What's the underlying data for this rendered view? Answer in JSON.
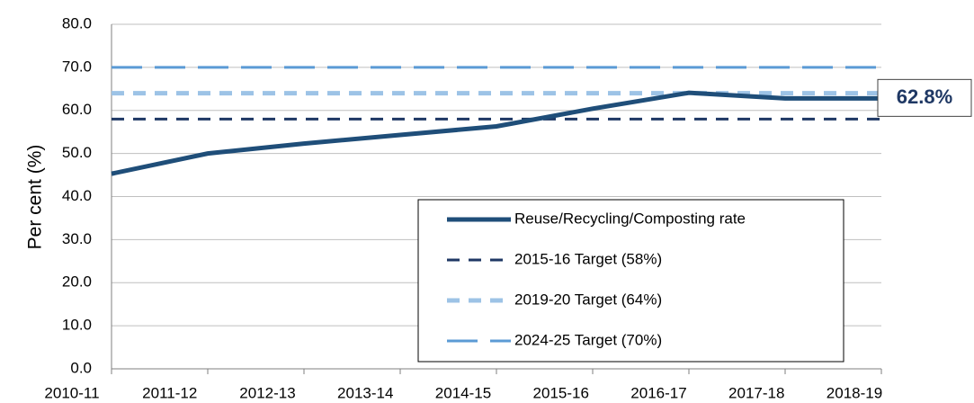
{
  "chart_data": {
    "type": "line",
    "y_label": "Per cent (%)",
    "categories": [
      "2010-11",
      "2011-12",
      "2012-13",
      "2013-14",
      "2014-15",
      "2015-16",
      "2016-17",
      "2017-18",
      "2018-19"
    ],
    "series": [
      {
        "name": "Reuse/Recycling/Composting rate",
        "color": "#1f4e79",
        "dash": "solid",
        "width": 5,
        "values": [
          45.3,
          50.0,
          52.3,
          54.3,
          56.3,
          60.4,
          64.1,
          62.8,
          62.8
        ],
        "value_labels": [
          null,
          null,
          null,
          null,
          null,
          null,
          null,
          null,
          "62.8%"
        ]
      },
      {
        "name": "2015-16 Target (58%)",
        "color": "#1f3864",
        "dash": "short",
        "width": 3,
        "values": [
          58,
          58,
          58,
          58,
          58,
          58,
          58,
          58,
          58
        ]
      },
      {
        "name": "2019-20 Target (64%)",
        "color": "#9dc3e6",
        "dash": "short",
        "width": 5,
        "values": [
          64,
          64,
          64,
          64,
          64,
          64,
          64,
          64,
          64
        ]
      },
      {
        "name": "2024-25 Target (70%)",
        "color": "#5b9bd5",
        "dash": "long",
        "width": 3,
        "values": [
          70,
          70,
          70,
          70,
          70,
          70,
          70,
          70,
          70
        ]
      }
    ],
    "ylim": [
      0,
      80
    ],
    "yticks": [
      {
        "value": 0,
        "label": "0.0"
      },
      {
        "value": 10,
        "label": "10.0"
      },
      {
        "value": 20,
        "label": "20.0"
      },
      {
        "value": 30,
        "label": "30.0"
      },
      {
        "value": 40,
        "label": "40.0"
      },
      {
        "value": 50,
        "label": "50.0"
      },
      {
        "value": 60,
        "label": "60.0"
      },
      {
        "value": 70,
        "label": "70.0"
      },
      {
        "value": 80,
        "label": "80.0"
      }
    ],
    "grid": true
  }
}
